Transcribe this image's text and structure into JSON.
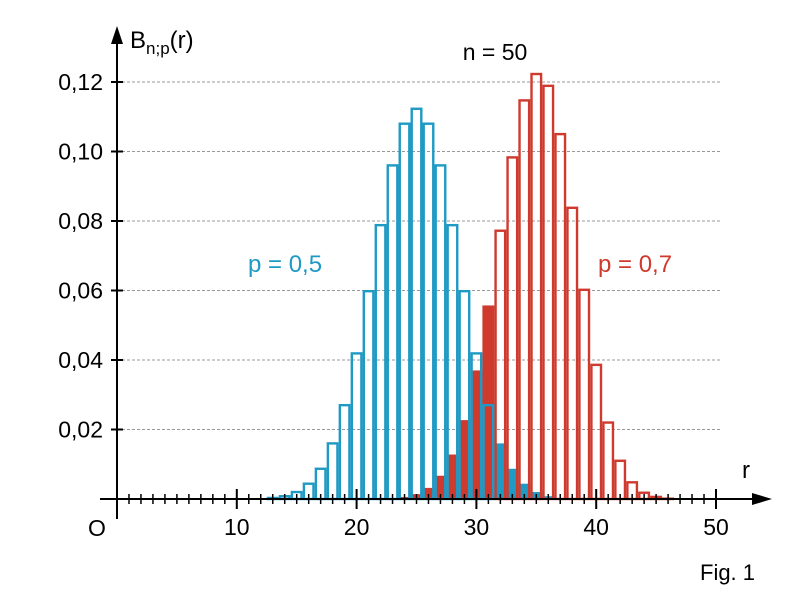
{
  "chart_data": {
    "type": "bar",
    "title": "n = 50",
    "ylabel": "B",
    "ylabel_sub": "n;p",
    "ylabel_suffix": "(r)",
    "xlabel": "r",
    "caption": "Fig. 1",
    "xlim": [
      0,
      50
    ],
    "ylim": [
      0,
      0.12
    ],
    "origin_label": "O",
    "xticks": [
      {
        "v": 10,
        "label": "10"
      },
      {
        "v": 20,
        "label": "20"
      },
      {
        "v": 30,
        "label": "30"
      },
      {
        "v": 40,
        "label": "40"
      },
      {
        "v": 50,
        "label": "50"
      }
    ],
    "yticks": [
      {
        "v": 0.02,
        "label": "0,02"
      },
      {
        "v": 0.04,
        "label": "0,04"
      },
      {
        "v": 0.06,
        "label": "0,06"
      },
      {
        "v": 0.08,
        "label": "0,08"
      },
      {
        "v": 0.1,
        "label": "0,10"
      },
      {
        "v": 0.12,
        "label": "0,12"
      }
    ],
    "series": [
      {
        "name": "p = 0,7",
        "color": "#cf3a2e",
        "filled_r": [
          24,
          25,
          26,
          27,
          28,
          29,
          30,
          31
        ],
        "r": [
          24,
          25,
          26,
          27,
          28,
          29,
          30,
          31,
          32,
          33,
          34,
          35,
          36,
          37,
          38,
          39,
          40,
          41,
          42,
          43,
          44,
          45,
          46
        ],
        "values": [
          0.0006,
          0.0014,
          0.0032,
          0.0067,
          0.0128,
          0.0227,
          0.037,
          0.0557,
          0.0772,
          0.0983,
          0.1147,
          0.1223,
          0.1189,
          0.105,
          0.0838,
          0.0602,
          0.0386,
          0.022,
          0.011,
          0.0048,
          0.0018,
          0.0006,
          0.0001
        ]
      },
      {
        "name": "p = 0,5",
        "color": "#1f9ac4",
        "filled_r": [
          32,
          33,
          34,
          35,
          36,
          37
        ],
        "r": [
          13,
          14,
          15,
          16,
          17,
          18,
          19,
          20,
          21,
          22,
          23,
          24,
          25,
          26,
          27,
          28,
          29,
          30,
          31,
          32,
          33,
          34,
          35,
          36,
          37
        ],
        "values": [
          0.0003,
          0.0008,
          0.002,
          0.0044,
          0.0087,
          0.016,
          0.027,
          0.0419,
          0.0598,
          0.0788,
          0.096,
          0.108,
          0.1123,
          0.108,
          0.096,
          0.0788,
          0.0598,
          0.0419,
          0.027,
          0.016,
          0.0087,
          0.0044,
          0.002,
          0.0008,
          0.0003
        ]
      }
    ]
  }
}
